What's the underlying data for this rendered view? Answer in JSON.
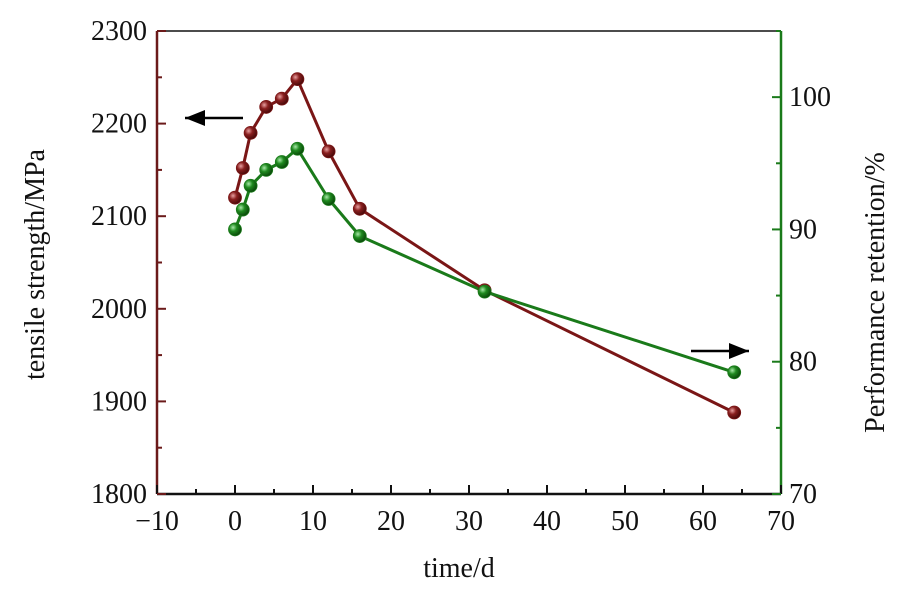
{
  "chart_data": {
    "type": "line",
    "xlabel": "time/d",
    "ylabel": "tensile strength/MPa",
    "y2label": "Performance retention/%",
    "xlim": [
      -10,
      70
    ],
    "ylim": [
      1800,
      2300
    ],
    "y2lim": [
      70,
      105
    ],
    "x_ticks": [
      -10,
      0,
      10,
      20,
      30,
      40,
      50,
      60,
      70
    ],
    "y_ticks": [
      1800,
      1900,
      2000,
      2100,
      2200,
      2300
    ],
    "y2_ticks": [
      70,
      80,
      90,
      100
    ],
    "grid": false,
    "series": [
      {
        "axis": "left",
        "color": "#7a1616",
        "x": [
          0,
          1,
          2,
          4,
          6,
          8,
          12,
          16,
          32,
          64
        ],
        "values": [
          2120,
          2152,
          2190,
          2218,
          2227,
          2248,
          2170,
          2108,
          2020,
          1888
        ]
      },
      {
        "axis": "right",
        "color": "#1a7a1a",
        "x": [
          0,
          1,
          2,
          4,
          6,
          8,
          12,
          16,
          32,
          64
        ],
        "values": [
          90.0,
          91.5,
          93.3,
          94.5,
          95.1,
          96.1,
          92.3,
          89.5,
          85.3,
          79.2
        ]
      }
    ],
    "annotations": [
      {
        "type": "arrow",
        "direction": "left",
        "points_to_axis": "left"
      },
      {
        "type": "arrow",
        "direction": "right",
        "points_to_axis": "right"
      }
    ]
  }
}
